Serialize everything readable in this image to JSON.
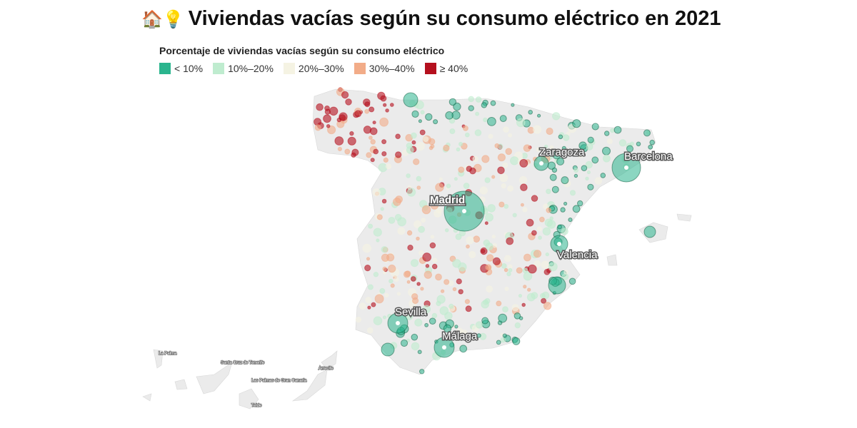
{
  "title": {
    "icons": "🏠💡",
    "text": "Viviendas vacías según su consumo eléctrico en 2021"
  },
  "legend": {
    "title": "Porcentaje de viviendas vacías según su consumo eléctrico",
    "items": [
      {
        "label": "< 10%",
        "color": "#2bb58e"
      },
      {
        "label": "10%–20%",
        "color": "#bfeccf"
      },
      {
        "label": "20%–30%",
        "color": "#f5f3e3"
      },
      {
        "label": "30%–40%",
        "color": "#f2ac88"
      },
      {
        "label": "≥ 40%",
        "color": "#b5101e"
      }
    ]
  },
  "map": {
    "land_color": "#ebebeb",
    "cities": [
      {
        "name": "Madrid",
        "category": "< 10%"
      },
      {
        "name": "Barcelona",
        "category": "< 10%"
      },
      {
        "name": "Zaragoza",
        "category": "< 10%"
      },
      {
        "name": "Valencia",
        "category": "< 10%"
      },
      {
        "name": "Sevilla",
        "category": "< 10%"
      },
      {
        "name": "Málaga",
        "category": "< 10%"
      }
    ],
    "canary_labels": [
      "La Palma",
      "Santa Cruz de Tenerife",
      "Las Palmas de Gran Canaria",
      "Arrecife",
      "Telde"
    ]
  }
}
